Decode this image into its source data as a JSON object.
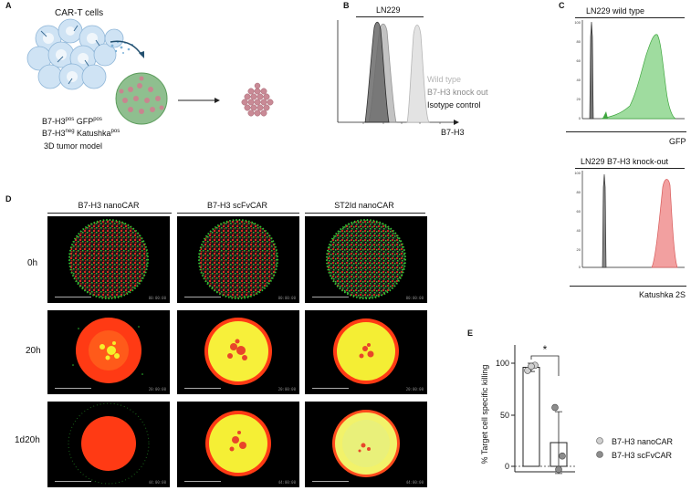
{
  "panel_a": {
    "label": "A",
    "cart_label": "CAR-T cells",
    "line1_main": "B7-H3",
    "line1_sup1": "pos",
    "line1_mid": " GFP",
    "line1_sup2": "pos",
    "line2_main": "B7-H3",
    "line2_sup1": "neg",
    "line2_mid": " Katushka",
    "line2_sup2": "pos",
    "line3": "3D tumor model"
  },
  "panel_b": {
    "label": "B",
    "title": "LN229",
    "xlabel": "B7-H3",
    "legend": [
      {
        "name": "Wild type",
        "color": "#b5b5b5"
      },
      {
        "name": "B7-H3 knock out",
        "color": "#8a8a8a"
      },
      {
        "name": "Isotype control",
        "color": "#111111"
      }
    ]
  },
  "panel_c": {
    "label": "C",
    "top_title": "LN229 wild type",
    "top_xlabel": "GFP",
    "bottom_title": "LN229 B7-H3 knock-out",
    "bottom_xlabel": "Katushka 2S",
    "yticks": [
      "100",
      "80",
      "60",
      "40",
      "20",
      "0"
    ]
  },
  "panel_d": {
    "label": "D",
    "columns": [
      "B7-H3 nanoCAR",
      "B7-H3 scFvCAR",
      "ST2Id nanoCAR"
    ],
    "rows": [
      "0h",
      "20h",
      "1d20h"
    ]
  },
  "panel_e": {
    "label": "E",
    "significance": "*",
    "chart_data": {
      "type": "bar",
      "categories": [
        "B7-H3 nanoCAR",
        "B7-H3 scFvCAR"
      ],
      "values": [
        96,
        23
      ],
      "errors": [
        4,
        30
      ],
      "points": [
        [
          93,
          98,
          97
        ],
        [
          57,
          10,
          -3
        ]
      ],
      "ylabel": "% Target cell specific killing",
      "yticks": [
        "100",
        "50",
        "0"
      ],
      "ylim": [
        -10,
        110
      ],
      "legend": [
        "B7-H3 nanoCAR",
        "B7-H3 scFvCAR"
      ],
      "colors": [
        "#cfcfcf",
        "#8c8c8c"
      ]
    }
  }
}
